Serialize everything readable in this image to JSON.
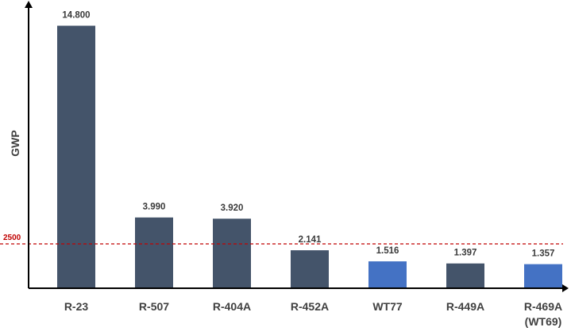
{
  "chart_data": {
    "type": "bar",
    "ylabel": "GWP",
    "xlabel": "",
    "title": "",
    "categories": [
      {
        "line1": "R-23",
        "line2": ""
      },
      {
        "line1": "R-507",
        "line2": ""
      },
      {
        "line1": "R-404A",
        "line2": ""
      },
      {
        "line1": "R-452A",
        "line2": ""
      },
      {
        "line1": "WT77",
        "line2": ""
      },
      {
        "line1": "R-449A",
        "line2": ""
      },
      {
        "line1": "R-469A",
        "line2": "(WT69)"
      }
    ],
    "values": [
      14800,
      3990,
      3920,
      2141,
      1516,
      1397,
      1357
    ],
    "value_labels": [
      "14.800",
      "3.990",
      "3.920",
      "2.141",
      "1.516",
      "1.397",
      "1.357"
    ],
    "highlighted": [
      false,
      false,
      false,
      false,
      true,
      false,
      true
    ],
    "colors": {
      "default": "#44546a",
      "highlight": "#4472c4",
      "reference": "#c00000",
      "axis": "#000000"
    },
    "reference_line": {
      "value": 2500,
      "label": "2500",
      "style": "dashed"
    },
    "ylim": [
      0,
      15000
    ],
    "grid": false,
    "legend": "none"
  }
}
